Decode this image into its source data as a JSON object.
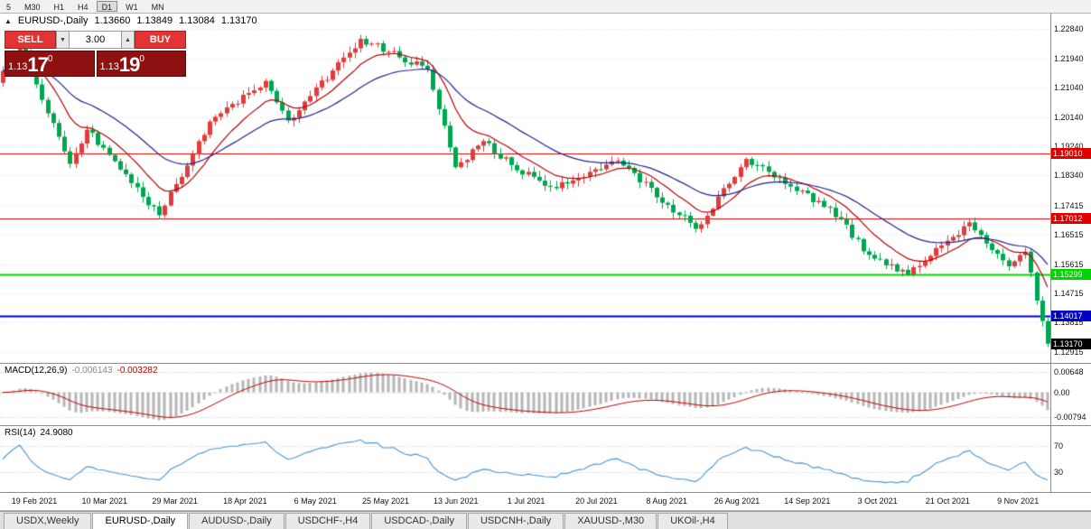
{
  "toolbar": {
    "timeframes": [
      {
        "label": "5",
        "active": false
      },
      {
        "label": "M30",
        "active": false
      },
      {
        "label": "H1",
        "active": false
      },
      {
        "label": "H4",
        "active": false
      },
      {
        "label": "D1",
        "active": true
      },
      {
        "label": "W1",
        "active": false
      },
      {
        "label": "MN",
        "active": false
      }
    ]
  },
  "header": {
    "symbol": "EURUSD-,Daily",
    "open": "1.13660",
    "high": "1.13849",
    "low": "1.13084",
    "close": "1.13170"
  },
  "trade": {
    "sell_label": "SELL",
    "buy_label": "BUY",
    "volume": "3.00",
    "spinner_down": "▼",
    "spinner_up": "▲",
    "bid": {
      "prefix": "1.13",
      "big": "17",
      "sup": "0"
    },
    "ask": {
      "prefix": "1.13",
      "big": "19",
      "sup": "0"
    },
    "button_color": "#e23434",
    "quote_bg": "#8e1111"
  },
  "tabs": [
    {
      "label": "USDX,Weekly",
      "active": false
    },
    {
      "label": "EURUSD-,Daily",
      "active": true
    },
    {
      "label": "AUDUSD-,Daily",
      "active": false
    },
    {
      "label": "USDCHF-,H4",
      "active": false
    },
    {
      "label": "USDCAD-,Daily",
      "active": false
    },
    {
      "label": "USDCNH-,Daily",
      "active": false
    },
    {
      "label": "XAUUSD-,M30",
      "active": false
    },
    {
      "label": "UKOil-,H4",
      "active": false
    }
  ],
  "chart_data": {
    "type": "candlestick",
    "title": "EURUSD-,Daily",
    "ohlc_last": {
      "open": 1.1366,
      "high": 1.13849,
      "low": 1.13084,
      "close": 1.1317
    },
    "price_axis": {
      "ticks": [
        "1.22840",
        "1.21940",
        "1.21040",
        "1.20140",
        "1.19240",
        "1.18340",
        "1.17415",
        "1.16515",
        "1.15615",
        "1.14715",
        "1.13815",
        "1.12915"
      ],
      "ylim": [
        1.1258,
        1.2332
      ]
    },
    "date_ticks": [
      "19 Feb 2021",
      "10 Mar 2021",
      "29 Mar 2021",
      "18 Apr 2021",
      "6 May 2021",
      "25 May 2021",
      "13 Jun 2021",
      "1 Jul 2021",
      "20 Jul 2021",
      "8 Aug 2021",
      "26 Aug 2021",
      "14 Sep 2021",
      "3 Oct 2021",
      "21 Oct 2021",
      "9 Nov 2021"
    ],
    "hlines": [
      {
        "value": 1.1901,
        "label": "1.19010",
        "color": "#e00000",
        "width": 1
      },
      {
        "value": 1.17012,
        "label": "1.17012",
        "color": "#e00000",
        "width": 1
      },
      {
        "value": 1.15299,
        "label": "1.15299",
        "color": "#00d500",
        "width": 2
      },
      {
        "value": 1.14017,
        "label": "1.14017",
        "color": "#0000c0",
        "width": 2
      }
    ],
    "current_price": {
      "value": 1.1317,
      "label": "1.13170",
      "color": "#000000"
    },
    "candle_colors": {
      "bull": "#e23b3b",
      "bear": "#00a550"
    },
    "moving_averages": [
      {
        "period": 10,
        "color": "#b80000"
      },
      {
        "period": 25,
        "color": "#24248f"
      }
    ],
    "candles_approx": {
      "approximation": true,
      "start": 1.2119,
      "segments": [
        {
          "to": 1.2243,
          "n": 4
        },
        {
          "to": 1.187,
          "n": 9
        },
        {
          "to": 1.1975,
          "n": 3
        },
        {
          "to": 1.1712,
          "n": 13
        },
        {
          "to": 1.2,
          "n": 9
        },
        {
          "to": 1.2125,
          "n": 10
        },
        {
          "to": 1.2003,
          "n": 4
        },
        {
          "to": 1.2254,
          "n": 13
        },
        {
          "to": 1.216,
          "n": 12
        },
        {
          "to": 1.186,
          "n": 5
        },
        {
          "to": 1.194,
          "n": 5
        },
        {
          "to": 1.185,
          "n": 6
        },
        {
          "to": 1.1795,
          "n": 7
        },
        {
          "to": 1.188,
          "n": 11
        },
        {
          "to": 1.167,
          "n": 14
        },
        {
          "to": 1.1885,
          "n": 9
        },
        {
          "to": 1.18,
          "n": 8
        },
        {
          "to": 1.1735,
          "n": 7
        },
        {
          "to": 1.159,
          "n": 7
        },
        {
          "to": 1.153,
          "n": 7
        },
        {
          "to": 1.169,
          "n": 11
        },
        {
          "to": 1.1555,
          "n": 7
        },
        {
          "to": 1.16,
          "n": 3
        },
        {
          "to": 1.1317,
          "n": 4
        }
      ]
    },
    "macd": {
      "label": "MACD(12,26,9)",
      "params": [
        12,
        26,
        9
      ],
      "value_main": "-0.006143",
      "value_signal": "-0.003282",
      "axis_ticks": [
        {
          "v": 0.00648,
          "label": "0.00648"
        },
        {
          "v": 0,
          "label": "0.00"
        },
        {
          "v": -0.00794,
          "label": "-0.00794"
        }
      ],
      "ylim": [
        -0.0106,
        0.0092
      ],
      "hist_color": "#b6b6b6",
      "signal_color": "#c00000"
    },
    "rsi": {
      "label": "RSI(14)",
      "period": 14,
      "value": "24.9080",
      "levels": [
        {
          "v": 70,
          "label": "70"
        },
        {
          "v": 30,
          "label": "30"
        }
      ],
      "ylim": [
        0,
        100
      ],
      "color": "#4a96d2"
    }
  }
}
